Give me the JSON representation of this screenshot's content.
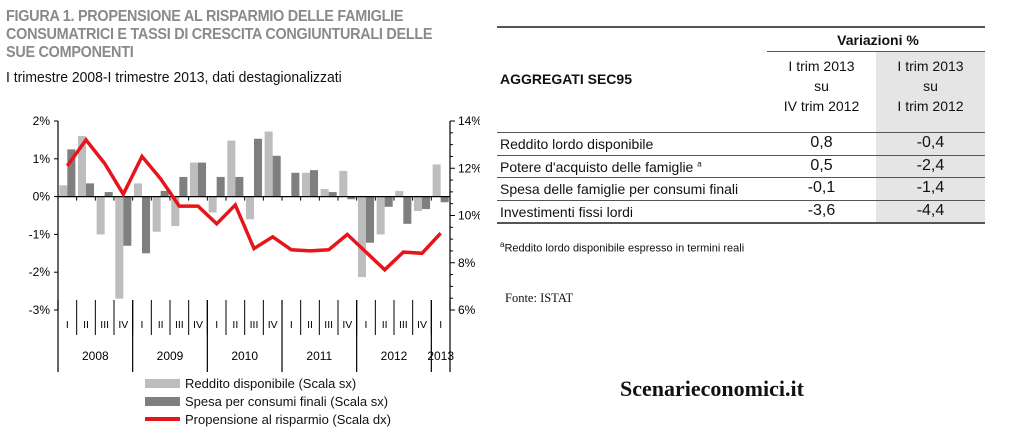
{
  "figure": {
    "title": "FIGURA 1. PROPENSIONE AL RISPARMIO DELLE FAMIGLIE CONSUMATRICI E TASSI DI CRESCITA CONGIUNTURALI DELLE SUE COMPONENTI",
    "subtitle": "I trimestre 2008-I trimestre 2013, dati destagionalizzati"
  },
  "chart_data": {
    "type": "bar",
    "combo": "bar+line (dual axis)",
    "quarters": [
      "I",
      "II",
      "III",
      "IV",
      "I",
      "II",
      "III",
      "IV",
      "I",
      "II",
      "III",
      "IV",
      "I",
      "II",
      "III",
      "IV",
      "I",
      "II",
      "III",
      "IV",
      "I"
    ],
    "years": [
      {
        "label": "2008",
        "quarters": 4
      },
      {
        "label": "2009",
        "quarters": 4
      },
      {
        "label": "2010",
        "quarters": 4
      },
      {
        "label": "2011",
        "quarters": 4
      },
      {
        "label": "2012",
        "quarters": 4
      },
      {
        "label": "2013",
        "quarters": 1
      }
    ],
    "left_axis": {
      "ylim": [
        -3,
        2
      ],
      "ticks": [
        "2%",
        "1%",
        "0%",
        "-1%",
        "-2%",
        "-3%"
      ],
      "tick_values": [
        2,
        1,
        0,
        -1,
        -2,
        -3
      ]
    },
    "right_axis": {
      "ylim": [
        6,
        14
      ],
      "ticks": [
        "14%",
        "12%",
        "10%",
        "8%",
        "6%"
      ],
      "tick_values": [
        14,
        12,
        10,
        8,
        6
      ]
    },
    "series": [
      {
        "name": "Reddito disponibile (Scala sx)",
        "type": "bar",
        "axis": "left",
        "color": "#bdbdbd",
        "values": [
          0.3,
          1.6,
          -1.0,
          -2.7,
          0.35,
          -0.93,
          -0.78,
          0.9,
          -0.42,
          1.48,
          -0.6,
          1.72,
          0.0,
          0.63,
          0.2,
          0.68,
          -2.13,
          -1.0,
          0.15,
          -0.38,
          0.85
        ]
      },
      {
        "name": "Spesa per consumi finali (Scala sx)",
        "type": "bar",
        "axis": "left",
        "color": "#7f7f7f",
        "values": [
          1.25,
          0.35,
          0.12,
          -1.3,
          -1.5,
          0.15,
          0.52,
          0.9,
          0.52,
          0.52,
          1.53,
          1.08,
          0.63,
          0.7,
          0.12,
          -0.07,
          -1.22,
          -0.27,
          -0.72,
          -0.33,
          -0.15
        ]
      },
      {
        "name": "Propensione al risparmio (Scala dx)",
        "type": "line",
        "axis": "right",
        "color": "#e8141b",
        "values": [
          12.1,
          13.2,
          12.2,
          10.9,
          12.5,
          11.55,
          10.4,
          10.4,
          9.65,
          10.45,
          8.6,
          9.1,
          8.55,
          8.5,
          8.55,
          9.2,
          8.45,
          7.7,
          8.45,
          8.4,
          9.25
        ]
      }
    ],
    "legend": "bottom"
  },
  "table": {
    "heading": "AGGREGATI SEC95",
    "group_header": "Variazioni %",
    "col1": [
      "I trim 2013",
      "su",
      "IV trim 2012"
    ],
    "col2": [
      "I trim 2013",
      "su",
      "I trim 2012"
    ],
    "rows": [
      {
        "label": "Reddito lordo disponibile",
        "sup": "",
        "v1": "0,8",
        "v2": "-0,4"
      },
      {
        "label": "Potere d'acquisto delle famiglie",
        "sup": "a",
        "v1": "0,5",
        "v2": "-2,4"
      },
      {
        "label": "Spesa delle famiglie per consumi finali",
        "sup": "",
        "v1": "-0,1",
        "v2": "-1,4"
      },
      {
        "label": "Investimenti fissi lordi",
        "sup": "",
        "v1": "-3,6",
        "v2": "-4,4"
      }
    ],
    "footnote_mark": "a",
    "footnote": "Reddito lordo disponibile espresso in termini reali"
  },
  "source": "Fonte: ISTAT",
  "brand": "Scenarieconomici.it"
}
